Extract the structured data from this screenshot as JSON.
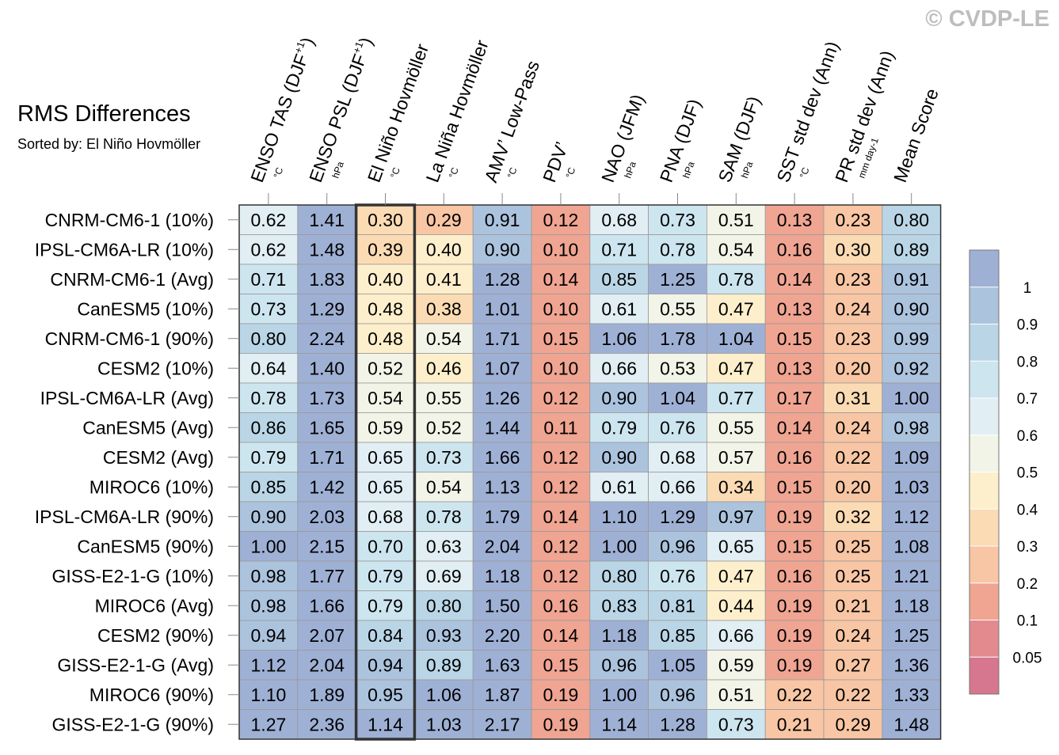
{
  "copyright": "© CVDP-LE",
  "chart_data": {
    "type": "heatmap",
    "title": "RMS Differences",
    "subtitle": "Sorted by: El Niño Hovmöller",
    "columns": [
      {
        "label": "ENSO TAS (DJF",
        "sup": "+1",
        "close": ")",
        "unit": "°C"
      },
      {
        "label": "ENSO PSL (DJF",
        "sup": "+1",
        "close": ")",
        "unit": "hPa"
      },
      {
        "label": "El Niño Hovmöller",
        "sup": "",
        "close": "",
        "unit": "°C"
      },
      {
        "label": "La Niña Hovmöller",
        "sup": "",
        "close": "",
        "unit": "°C"
      },
      {
        "label": "AMV’ Low-Pass",
        "sup": "",
        "close": "",
        "unit": "°C"
      },
      {
        "label": "PDV’",
        "sup": "",
        "close": "",
        "unit": "°C"
      },
      {
        "label": "NAO (JFM)",
        "sup": "",
        "close": "",
        "unit": "hPa"
      },
      {
        "label": "PNA (DJF)",
        "sup": "",
        "close": "",
        "unit": "hPa"
      },
      {
        "label": "SAM (DJF)",
        "sup": "",
        "close": "",
        "unit": "hPa"
      },
      {
        "label": "SST std dev (Ann)",
        "sup": "",
        "close": "",
        "unit": "°C"
      },
      {
        "label": "PR std dev (Ann)",
        "sup": "",
        "close": "",
        "unit": "mm day-1"
      },
      {
        "label": "Mean Score",
        "sup": "",
        "close": "",
        "unit": ""
      }
    ],
    "rows": [
      "CNRM-CM6-1 (10%)",
      "IPSL-CM6A-LR (10%)",
      "CNRM-CM6-1 (Avg)",
      "CanESM5 (10%)",
      "CNRM-CM6-1 (90%)",
      "CESM2 (10%)",
      "IPSL-CM6A-LR (Avg)",
      "CanESM5 (Avg)",
      "CESM2 (Avg)",
      "MIROC6 (10%)",
      "IPSL-CM6A-LR (90%)",
      "CanESM5 (90%)",
      "GISS-E2-1-G (10%)",
      "MIROC6 (Avg)",
      "CESM2 (90%)",
      "GISS-E2-1-G (Avg)",
      "MIROC6 (90%)",
      "GISS-E2-1-G (90%)"
    ],
    "values": [
      [
        "0.62",
        "1.41",
        "0.30",
        "0.29",
        "0.91",
        "0.12",
        "0.68",
        "0.73",
        "0.51",
        "0.13",
        "0.23",
        "0.80"
      ],
      [
        "0.62",
        "1.48",
        "0.39",
        "0.40",
        "0.90",
        "0.10",
        "0.71",
        "0.78",
        "0.54",
        "0.16",
        "0.30",
        "0.89"
      ],
      [
        "0.71",
        "1.83",
        "0.40",
        "0.41",
        "1.28",
        "0.14",
        "0.85",
        "1.25",
        "0.78",
        "0.14",
        "0.23",
        "0.91"
      ],
      [
        "0.73",
        "1.29",
        "0.48",
        "0.38",
        "1.01",
        "0.10",
        "0.61",
        "0.55",
        "0.47",
        "0.13",
        "0.24",
        "0.90"
      ],
      [
        "0.80",
        "2.24",
        "0.48",
        "0.54",
        "1.71",
        "0.15",
        "1.06",
        "1.78",
        "1.04",
        "0.15",
        "0.23",
        "0.99"
      ],
      [
        "0.64",
        "1.40",
        "0.52",
        "0.46",
        "1.07",
        "0.10",
        "0.66",
        "0.53",
        "0.47",
        "0.13",
        "0.20",
        "0.92"
      ],
      [
        "0.78",
        "1.73",
        "0.54",
        "0.55",
        "1.26",
        "0.12",
        "0.90",
        "1.04",
        "0.77",
        "0.17",
        "0.31",
        "1.00"
      ],
      [
        "0.86",
        "1.65",
        "0.59",
        "0.52",
        "1.44",
        "0.11",
        "0.79",
        "0.76",
        "0.55",
        "0.14",
        "0.24",
        "0.98"
      ],
      [
        "0.79",
        "1.71",
        "0.65",
        "0.73",
        "1.66",
        "0.12",
        "0.90",
        "0.68",
        "0.57",
        "0.16",
        "0.22",
        "1.09"
      ],
      [
        "0.85",
        "1.42",
        "0.65",
        "0.54",
        "1.13",
        "0.12",
        "0.61",
        "0.66",
        "0.34",
        "0.15",
        "0.20",
        "1.03"
      ],
      [
        "0.90",
        "2.03",
        "0.68",
        "0.78",
        "1.79",
        "0.14",
        "1.10",
        "1.29",
        "0.97",
        "0.19",
        "0.32",
        "1.12"
      ],
      [
        "1.00",
        "2.15",
        "0.70",
        "0.63",
        "2.04",
        "0.12",
        "1.00",
        "0.96",
        "0.65",
        "0.15",
        "0.25",
        "1.08"
      ],
      [
        "0.98",
        "1.77",
        "0.79",
        "0.69",
        "1.18",
        "0.12",
        "0.80",
        "0.76",
        "0.47",
        "0.16",
        "0.25",
        "1.21"
      ],
      [
        "0.98",
        "1.66",
        "0.79",
        "0.80",
        "1.50",
        "0.16",
        "0.83",
        "0.81",
        "0.44",
        "0.19",
        "0.21",
        "1.18"
      ],
      [
        "0.94",
        "2.07",
        "0.84",
        "0.93",
        "2.20",
        "0.14",
        "1.18",
        "0.85",
        "0.66",
        "0.19",
        "0.24",
        "1.25"
      ],
      [
        "1.12",
        "2.04",
        "0.94",
        "0.89",
        "1.63",
        "0.15",
        "0.96",
        "1.05",
        "0.59",
        "0.19",
        "0.27",
        "1.36"
      ],
      [
        "1.10",
        "1.89",
        "0.95",
        "1.06",
        "1.87",
        "0.19",
        "1.00",
        "0.96",
        "0.51",
        "0.22",
        "0.22",
        "1.33"
      ],
      [
        "1.27",
        "2.36",
        "1.14",
        "1.03",
        "2.17",
        "0.19",
        "1.14",
        "1.28",
        "0.73",
        "0.21",
        "0.29",
        "1.48"
      ]
    ],
    "highlighted_column": "El Niño Hovmöller",
    "colorbar": {
      "ticks": [
        "1",
        "0.9",
        "0.8",
        "0.7",
        "0.6",
        "0.5",
        "0.4",
        "0.3",
        "0.2",
        "0.1",
        "0.05"
      ],
      "colors": [
        "#9fb0d5",
        "#acc3de",
        "#bad6e6",
        "#cde5ef",
        "#e1eef4",
        "#f2f4e8",
        "#fdefcc",
        "#fbdbb4",
        "#f8c6a4",
        "#efa592",
        "#e38a8f",
        "#d7768f"
      ]
    }
  }
}
